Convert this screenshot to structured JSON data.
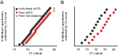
{
  "chart_data": [
    {
      "type": "scatter",
      "title": "A",
      "x_label": "Ct value",
      "y_label": [
        "Individual specimens",
        "ordered by Ct value"
      ],
      "xlim": [
        10,
        42
      ],
      "xticks": [
        10,
        20,
        30,
        40
      ],
      "ylim": [
        0,
        25
      ],
      "tick_labels": "x",
      "grid": false,
      "legend": "upper left",
      "series": [
        {
          "name": "Individual qPCR",
          "color": "#222222",
          "marker": "circle",
          "x": [
            14,
            16,
            17,
            18,
            19,
            20,
            21,
            22,
            22.5,
            23,
            24,
            25,
            26,
            27,
            28,
            29,
            30,
            31,
            32,
            33,
            34,
            35,
            36,
            37
          ],
          "values": [
            1,
            2,
            3,
            4,
            5,
            6,
            7,
            8,
            9,
            10,
            11,
            12,
            13,
            14,
            15,
            16,
            17,
            18,
            19,
            20,
            21,
            22,
            23,
            24
          ]
        },
        {
          "name": "Pool qPCR",
          "color": "#d62728",
          "marker": "circle",
          "x": [
            17,
            19,
            20,
            21,
            22,
            23,
            24,
            25,
            26,
            26,
            27,
            28,
            29,
            30,
            31,
            32,
            33,
            34,
            35,
            36,
            37
          ],
          "values": [
            1,
            2,
            3,
            4,
            5,
            6,
            7,
            8,
            9,
            10,
            11,
            12,
            13,
            14,
            15,
            16,
            17,
            18,
            19,
            20,
            21
          ]
        },
        {
          "name": "Pool not detected",
          "color": "#d62728",
          "marker": "x",
          "x": [
            40,
            40,
            40
          ],
          "values": [
            22,
            23,
            24
          ]
        }
      ]
    },
    {
      "type": "scatter",
      "title": "B",
      "x_label": "Ct value",
      "y_label": [
        "Individual specimens",
        "ordered by Ct value"
      ],
      "xlim": [
        18,
        42
      ],
      "xticks": [
        20,
        25,
        30,
        35,
        40
      ],
      "ylim": [
        0,
        13
      ],
      "tick_labels": "x",
      "grid": false,
      "series": [
        {
          "name": "Individual qPCR",
          "color": "#222222",
          "marker": "circle",
          "x": [
            22,
            24,
            25,
            27,
            28,
            29,
            30,
            31,
            32,
            33,
            35,
            36
          ],
          "values": [
            1,
            2,
            3,
            4,
            5,
            6,
            7,
            8,
            9,
            10,
            11,
            12
          ]
        },
        {
          "name": "Pool qPCR",
          "color": "#d62728",
          "marker": "circle",
          "x": [
            26,
            28,
            29,
            31,
            33,
            34,
            35,
            36,
            37,
            38,
            40,
            41
          ],
          "values": [
            1,
            2,
            3,
            4,
            5,
            6,
            7,
            8,
            9,
            10,
            11,
            12
          ]
        }
      ]
    }
  ]
}
